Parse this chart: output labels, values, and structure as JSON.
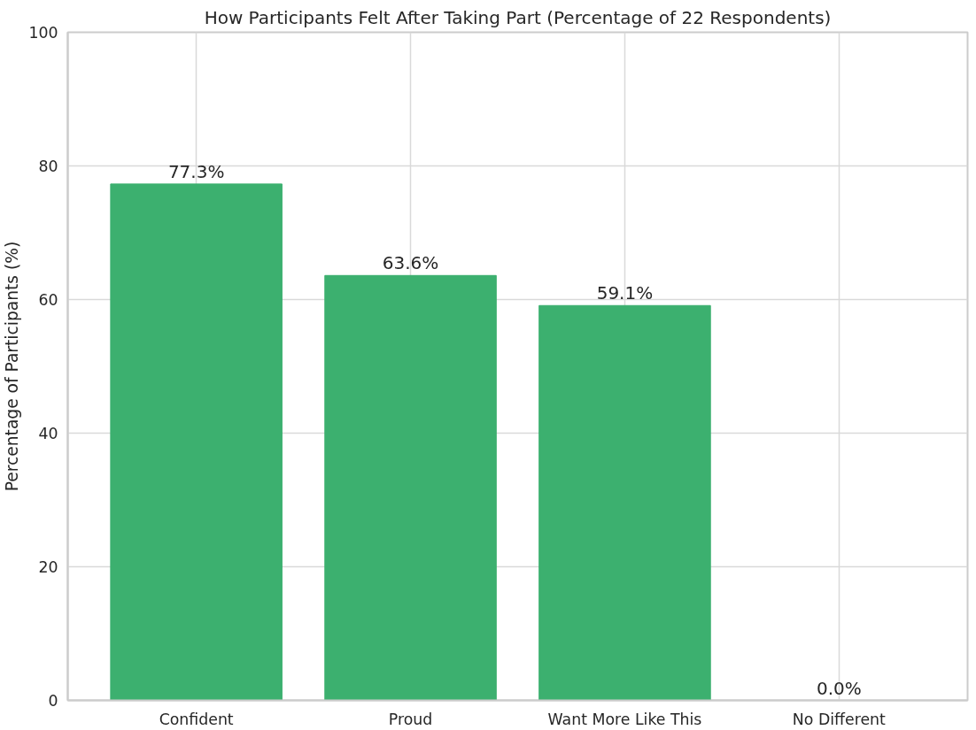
{
  "chart_data": {
    "type": "bar",
    "title": "How Participants Felt After Taking Part (Percentage of 22 Respondents)",
    "ylabel": "Percentage of Participants (%)",
    "categories": [
      "Confident",
      "Proud",
      "Want More Like This",
      "No Different"
    ],
    "values": [
      77.3,
      63.6,
      59.1,
      0.0
    ],
    "value_labels": [
      "77.3%",
      "63.6%",
      "59.1%",
      "0.0%"
    ],
    "color": "#3cb06f",
    "ylim": [
      0,
      100
    ],
    "yticks": [
      0,
      20,
      40,
      60,
      80,
      100
    ],
    "grid": true
  }
}
